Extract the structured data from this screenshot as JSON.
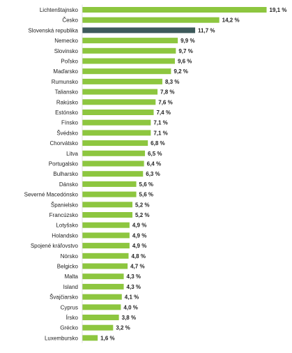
{
  "chart_data": {
    "type": "bar",
    "orientation": "horizontal",
    "title": "",
    "xlabel": "",
    "ylabel": "",
    "xlim": [
      0,
      20
    ],
    "grid": false,
    "legend": "none",
    "value_suffix": " %",
    "colors": {
      "default": "#8dc63f",
      "highlight": "#3d5a5b"
    },
    "highlight_category": "Slovenská republika",
    "categories": [
      "Lichtenštajnsko",
      "Česko",
      "Slovenská republika",
      "Nemecko",
      "Slovinsko",
      "Poľsko",
      "Maďarsko",
      "Rumunsko",
      "Taliansko",
      "Rakúsko",
      "Estónsko",
      "Fínsko",
      "Švédsko",
      "Chorvátsko",
      "Litva",
      "Portugalsko",
      "Bulharsko",
      "Dánsko",
      "Severné Macedónsko",
      "Španielsko",
      "Francúzsko",
      "Lotyšsko",
      "Holandsko",
      "Spojené kráľovstvo",
      "Nórsko",
      "Belgicko",
      "Malta",
      "Island",
      "Švajčiarsko",
      "Cyprus",
      "Írsko",
      "Grécko",
      "Luxembursko"
    ],
    "values": [
      19.1,
      14.2,
      11.7,
      9.9,
      9.7,
      9.6,
      9.2,
      8.3,
      7.8,
      7.6,
      7.4,
      7.1,
      7.1,
      6.8,
      6.5,
      6.4,
      6.3,
      5.6,
      5.6,
      5.2,
      5.2,
      4.9,
      4.9,
      4.9,
      4.8,
      4.7,
      4.3,
      4.3,
      4.1,
      4.0,
      3.8,
      3.2,
      1.6
    ],
    "value_labels": [
      "19,1 %",
      "14,2 %",
      "11,7 %",
      "9,9 %",
      "9,7 %",
      "9,6 %",
      "9,2 %",
      "8,3 %",
      "7,8 %",
      "7,6 %",
      "7,4 %",
      "7,1 %",
      "7,1 %",
      "6,8 %",
      "6,5 %",
      "6,4 %",
      "6,3 %",
      "5,6 %",
      "5,6 %",
      "5,2 %",
      "5,2 %",
      "4,9 %",
      "4,9 %",
      "4,9 %",
      "4,8 %",
      "4,7 %",
      "4,3 %",
      "4,3 %",
      "4,1 %",
      "4,0 %",
      "3,8 %",
      "3,2 %",
      "1,6 %"
    ]
  }
}
